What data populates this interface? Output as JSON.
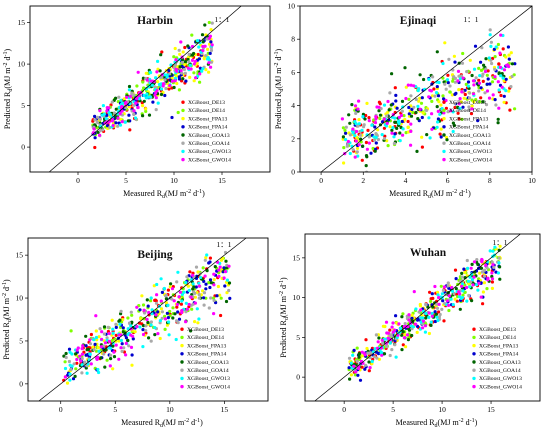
{
  "chart_data": [
    {
      "type": "scatter",
      "title": "Harbin",
      "ratio_label": "1：1",
      "xlabel_main": "Measured R",
      "xlabel_sub": "d",
      "xlabel_unit": "(MJ m",
      "xlabel_exp1": "-2",
      "xlabel_mid": " d",
      "xlabel_exp2": "-1",
      "xlabel_end": ")",
      "ylabel_main": "Predicted R",
      "ylabel_sub": "d",
      "ylabel_unit": "(MJ m",
      "ylabel_exp1": "-2",
      "ylabel_mid": " d",
      "ylabel_exp2": "-1",
      "ylabel_end": ")",
      "xlim": [
        -5,
        20
      ],
      "ylim": [
        -3,
        17
      ],
      "xticks": [
        "0",
        "5",
        "10",
        "15"
      ],
      "yticks": [
        "0",
        "5",
        "10",
        "15"
      ],
      "x_range": [
        1.5,
        14
      ],
      "slope": 0.78,
      "intercept": 1.1,
      "spread": 1.4,
      "legend_placement": "right"
    },
    {
      "type": "scatter",
      "title": "Ejinaqi",
      "ratio_label": "1：1",
      "xlabel_main": "Measured R",
      "xlabel_sub": "d",
      "xlabel_unit": "(MJ m",
      "xlabel_exp1": "-2",
      "xlabel_mid": " d",
      "xlabel_exp2": "-1",
      "xlabel_end": ")",
      "ylabel_main": "Predicted R",
      "ylabel_sub": "d",
      "ylabel_unit": "(MJ m",
      "ylabel_exp1": "-2",
      "ylabel_mid": " d",
      "ylabel_exp2": "-1",
      "ylabel_end": ")",
      "xlim": [
        -1,
        10
      ],
      "ylim": [
        0,
        10
      ],
      "xticks": [
        "0",
        "2",
        "4",
        "6",
        "8",
        "10"
      ],
      "yticks": [
        "0",
        "2",
        "4",
        "6",
        "8",
        "10"
      ],
      "x_range": [
        1.0,
        9.2
      ],
      "slope": 0.55,
      "intercept": 1.3,
      "spread": 1.2,
      "legend_placement": "right"
    },
    {
      "type": "scatter",
      "title": "Beijing",
      "ratio_label": "1：1",
      "xlabel_main": "Measured R",
      "xlabel_sub": "d",
      "xlabel_unit": "(MJ m",
      "xlabel_exp1": "-2",
      "xlabel_mid": " d",
      "xlabel_exp2": "-1",
      "xlabel_end": ")",
      "ylabel_main": "Predicted R",
      "ylabel_sub": "d",
      "ylabel_unit": "(MJ m",
      "ylabel_exp1": "-2",
      "ylabel_mid": " d",
      "ylabel_exp2": "-1",
      "ylabel_end": ")",
      "xlim": [
        -3,
        19
      ],
      "ylim": [
        -2,
        17
      ],
      "xticks": [
        "0",
        "5",
        "10",
        "15"
      ],
      "yticks": [
        "0",
        "5",
        "10",
        "15"
      ],
      "x_range": [
        0.2,
        15.5
      ],
      "slope": 0.75,
      "intercept": 1.6,
      "spread": 1.8,
      "legend_placement": "right"
    },
    {
      "type": "scatter",
      "title": "Wuhan",
      "ratio_label": "1：1",
      "xlabel_main": "Measured R",
      "xlabel_sub": "d",
      "xlabel_unit": "(MJ m",
      "xlabel_exp1": "-2",
      "xlabel_mid": " d",
      "xlabel_exp2": "-1",
      "xlabel_end": ")",
      "ylabel_main": "Predicted R",
      "ylabel_sub": "d",
      "ylabel_unit": "(MJ m",
      "ylabel_exp1": "-2",
      "ylabel_mid": " d",
      "ylabel_exp2": "-1",
      "ylabel_end": ")",
      "xlim": [
        -4,
        20
      ],
      "ylim": [
        -3,
        18
      ],
      "xticks": [
        "0",
        "5",
        "10",
        "15"
      ],
      "yticks": [
        "0",
        "5",
        "10",
        "15"
      ],
      "x_range": [
        0.5,
        16
      ],
      "slope": 0.9,
      "intercept": 0.5,
      "spread": 1.3,
      "legend_placement": "right"
    }
  ],
  "series": [
    {
      "name": "XGBoost_DE13",
      "color": "#ff0000"
    },
    {
      "name": "XGBoost_DE14",
      "color": "#7fff00"
    },
    {
      "name": "XGBoost_FPA13",
      "color": "#ffff00"
    },
    {
      "name": "XGBoost_FPA14",
      "color": "#0000cd"
    },
    {
      "name": "XGBoost_GOA13",
      "color": "#006400"
    },
    {
      "name": "XGBoost_GOA14",
      "color": "#a9a9a9"
    },
    {
      "name": "XGBoost_GWO13",
      "color": "#00ffff"
    },
    {
      "name": "XGBoost_GWO14",
      "color": "#ff00ff"
    }
  ]
}
